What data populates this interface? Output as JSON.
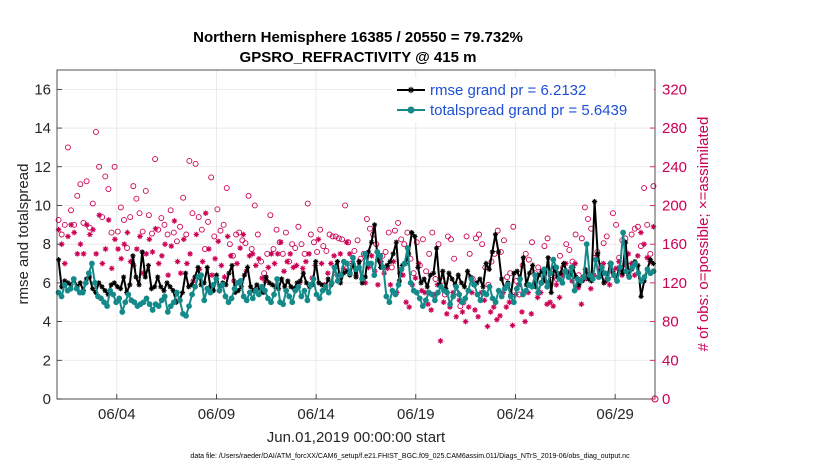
{
  "chart_data": {
    "type": "line",
    "title": "Northern Hemisphere 16385 / 20550 = 79.732%",
    "subtitle": "GPSRO_REFRACTIVITY @ 415 m",
    "xlabel": "Jun.01,2019 00:00:00 start",
    "ylabel": "rmse and totalspread",
    "ylabel_right": "# of obs: o=possible; ×=assimilated",
    "footnote": "data file: /Users/raeder/DAI/ATM_forcXX/CAM6_setup/f.e21.FHIST_BGC.f09_025.CAM6assim.011/Diags_NTrS_2019-06/obs_diag_output.nc",
    "xlim": [
      1.0,
      31.0
    ],
    "ylim": [
      0,
      17
    ],
    "ylim_right": [
      0,
      340
    ],
    "xticks": [
      4,
      9,
      14,
      19,
      24,
      29
    ],
    "xtick_labels": [
      "06/04",
      "06/09",
      "06/14",
      "06/19",
      "06/24",
      "06/29"
    ],
    "yticks": [
      0,
      2,
      4,
      6,
      8,
      10,
      12,
      14,
      16
    ],
    "ytick_labels": [
      "0",
      "2",
      "4",
      "6",
      "8",
      "10",
      "12",
      "14",
      "16"
    ],
    "yticks_right": [
      0,
      40,
      80,
      120,
      160,
      200,
      240,
      280,
      320
    ],
    "ytick_labels_right": [
      "0",
      "40",
      "80",
      "120",
      "160",
      "200",
      "240",
      "280",
      "320"
    ],
    "grid": true,
    "legend_position": "top-right",
    "colors": {
      "rmse": "#000000",
      "spread": "#148a8a",
      "obs": "#cc0055",
      "legend_text": "#1f4fd8"
    },
    "series": [
      {
        "name": "rmse grand pr = 6.2132",
        "axis": "left",
        "style": "line-star",
        "values": [
          7.2,
          5.8,
          6.1,
          6.0,
          5.9,
          6.2,
          5.8,
          6.0,
          5.6,
          6.2,
          6.3,
          5.7,
          5.5,
          6.0,
          5.8,
          5.6,
          5.4,
          5.9,
          6.0,
          5.8,
          5.7,
          6.3,
          5.5,
          5.9,
          7.4,
          6.3,
          5.9,
          7.6,
          6.3,
          6.9,
          5.7,
          5.8,
          6.3,
          5.8,
          5.6,
          6.0,
          5.8,
          5.6,
          5.0,
          5.1,
          5.5,
          6.5,
          5.8,
          5.9,
          6.3,
          6.8,
          5.9,
          6.0,
          6.8,
          5.8,
          5.6,
          6.4,
          5.6,
          6.0,
          5.9,
          6.5,
          6.9,
          5.5,
          5.6,
          5.8,
          6.4,
          6.8,
          5.8,
          5.6,
          5.9,
          5.7,
          5.5,
          6.3,
          6.0,
          5.9,
          5.8,
          5.7,
          6.2,
          5.8,
          6.1,
          5.8,
          5.7,
          6.0,
          6.1,
          6.5,
          6.0,
          5.8,
          5.9,
          7.1,
          6.0,
          5.9,
          5.7,
          6.2,
          5.9,
          6.8,
          7.1,
          6.0,
          6.5,
          6.6,
          6.4,
          7.0,
          6.3,
          7.1,
          6.0,
          6.3,
          7.6,
          8.1,
          9.0,
          7.2,
          6.8,
          6.8,
          6.9,
          7.1,
          7.5,
          8.1,
          6.1,
          6.9,
          7.0,
          7.5,
          8.6,
          8.4,
          6.8,
          6.0,
          6.2,
          5.8,
          6.4,
          6.5,
          7.8,
          5.9,
          6.6,
          5.7,
          6.5,
          6.2,
          5.9,
          6.4,
          6.0,
          5.8,
          6.6,
          6.3,
          5.9,
          6.0,
          6.2,
          5.8,
          7.0,
          6.7,
          7.6,
          8.5,
          7.6,
          6.2,
          5.7,
          6.0,
          5.4,
          6.5,
          6.6,
          6.2,
          7.3,
          5.9,
          6.5,
          6.9,
          5.8,
          6.4,
          6.6,
          6.1,
          7.3,
          5.5,
          6.8,
          6.3,
          6.5,
          7.0,
          6.6,
          6.4,
          6.8,
          6.3,
          5.9,
          6.1,
          6.7,
          6.2,
          6.1,
          10.2,
          7.5,
          6.6,
          6.0,
          6.2,
          7.0,
          6.5,
          6.2,
          6.8,
          6.5,
          8.1,
          6.4,
          6.7,
          7.1,
          6.9,
          5.3,
          6.1,
          6.7,
          7.2,
          7.0
        ]
      },
      {
        "name": "totalspread grand pr = 5.6439",
        "axis": "left",
        "style": "line-dot",
        "values": [
          5.5,
          5.3,
          5.9,
          5.6,
          5.7,
          6.2,
          5.7,
          5.5,
          5.5,
          6.0,
          6.5,
          7.0,
          6.0,
          5.3,
          5.2,
          5.0,
          4.8,
          5.6,
          5.4,
          5.0,
          5.2,
          4.5,
          5.0,
          5.4,
          5.1,
          5.0,
          4.8,
          4.9,
          5.0,
          5.2,
          4.9,
          4.6,
          4.9,
          4.8,
          5.1,
          5.3,
          4.5,
          4.8,
          5.0,
          5.5,
          5.1,
          4.4,
          4.3,
          4.8,
          5.4,
          5.8,
          6.3,
          6.4,
          5.1,
          5.7,
          5.5,
          5.9,
          6.2,
          5.6,
          5.9,
          5.3,
          5.0,
          5.2,
          5.7,
          6.0,
          6.1,
          5.3,
          5.1,
          5.5,
          5.2,
          5.6,
          5.4,
          5.8,
          5.6,
          5.2,
          5.0,
          5.4,
          6.2,
          5.0,
          4.9,
          5.6,
          5.3,
          5.0,
          5.6,
          5.8,
          5.3,
          5.6,
          5.1,
          5.9,
          6.2,
          5.4,
          5.2,
          5.6,
          5.8,
          5.5,
          6.0,
          6.8,
          6.1,
          6.4,
          7.1,
          7.0,
          6.5,
          7.3,
          6.7,
          6.8,
          6.2,
          7.5,
          7.0,
          7.0,
          6.4,
          7.6,
          7.4,
          6.8,
          5.3,
          5.0,
          5.6,
          5.4,
          5.9,
          6.7,
          7.0,
          7.8,
          6.0,
          5.6,
          5.5,
          5.2,
          4.8,
          5.1,
          5.5,
          5.4,
          5.1,
          5.5,
          5.8,
          5.6,
          5.5,
          4.9,
          5.3,
          5.8,
          5.4,
          5.0,
          5.2,
          5.6,
          6.2,
          5.9,
          5.4,
          5.1,
          5.5,
          5.4,
          5.8,
          5.2,
          5.0,
          5.6,
          5.3,
          5.7,
          5.9,
          5.3,
          5.0,
          5.7,
          6.2,
          5.4,
          5.6,
          5.9,
          5.8,
          6.4,
          5.5,
          6.0,
          6.7,
          5.8,
          6.5,
          7.2,
          6.8,
          6.2,
          6.0,
          6.6,
          6.3,
          6.8,
          5.6,
          6.2,
          6.1,
          6.3,
          8.0,
          6.4,
          6.2,
          7.2,
          6.3,
          6.8,
          6.5,
          6.2,
          7.0,
          6.4,
          6.1,
          6.8,
          8.6,
          6.6,
          6.3,
          6.8,
          7.0,
          6.5,
          6.1,
          6.3,
          6.7,
          6.5,
          6.6
        ]
      },
      {
        "name": "obs possible",
        "axis": "right",
        "style": "circle",
        "values": [
          185,
          170,
          180,
          260,
          195,
          180,
          210,
          222,
          182,
          225,
          177,
          202,
          276,
          240,
          188,
          230,
          217,
          172,
          240,
          173,
          198,
          185,
          156,
          188,
          220,
          207,
          192,
          173,
          215,
          190,
          171,
          248,
          175,
          187,
          180,
          170,
          195,
          172,
          163,
          178,
          208,
          170,
          246,
          192,
          243,
          188,
          175,
          155,
          183,
          229,
          168,
          196,
          174,
          180,
          218,
          160,
          148,
          170,
          172,
          164,
          161,
          210,
          155,
          200,
          170,
          142,
          130,
          150,
          190,
          155,
          175,
          162,
          150,
          172,
          142,
          160,
          156,
          178,
          160,
          150,
          202,
          170,
          162,
          152,
          175,
          158,
          153,
          170,
          168,
          168,
          166,
          165,
          200,
          162,
          140,
          153,
          164,
          145,
          150,
          186,
          176,
          170,
          160,
          148,
          148,
          152,
          172,
          136,
          174,
          182,
          165,
          160,
          172,
          145,
          130,
          162,
          138,
          165,
          132,
          150,
          172,
          124,
          160,
          122,
          108,
          168,
          165,
          145,
          110,
          96,
          100,
          168,
          150,
          124,
          166,
          170,
          160,
          136,
          118,
          142,
          150,
          174,
          152,
          164,
          126,
          130,
          178,
          122,
          108,
          138,
          150,
          144,
          162,
          130,
          136,
          120,
          158,
          166,
          128,
          130,
          124,
          148,
          136,
          160,
          154,
          142,
          170,
          128,
          166,
          198,
          186,
          176,
          146,
          152,
          132,
          161,
          168,
          128,
          192,
          180,
          146,
          164,
          166,
          132,
          170,
          176,
          178,
          158,
          218,
          180,
          150,
          220
        ]
      },
      {
        "name": "obs assimilated",
        "axis": "right",
        "style": "star",
        "values": [
          175,
          160,
          140,
          168,
          180,
          172,
          150,
          160,
          150,
          180,
          170,
          175,
          150,
          190,
          140,
          155,
          185,
          135,
          165,
          155,
          145,
          160,
          172,
          142,
          138,
          155,
          168,
          130,
          150,
          165,
          152,
          176,
          140,
          148,
          160,
          128,
          158,
          184,
          142,
          130,
          165,
          140,
          150,
          122,
          170,
          134,
          142,
          192,
          155,
          128,
          145,
          163,
          138,
          126,
          168,
          148,
          122,
          140,
          156,
          170,
          132,
          148,
          150,
          138,
          145,
          125,
          122,
          136,
          150,
          140,
          150,
          162,
          132,
          142,
          150,
          136,
          138,
          120,
          135,
          142,
          150,
          125,
          138,
          165,
          140,
          118,
          130,
          140,
          148,
          128,
          150,
          135,
          162,
          150,
          140,
          128,
          142,
          125,
          120,
          136,
          148,
          132,
          118,
          142,
          130,
          135,
          118,
          142,
          110,
          130,
          128,
          100,
          95,
          118,
          125,
          140,
          112,
          110,
          98,
          92,
          108,
          118,
          60,
          100,
          88,
          95,
          110,
          85,
          102,
          90,
          80,
          95,
          110,
          92,
          85,
          110,
          102,
          75,
          90,
          95,
          82,
          86,
          110,
          95,
          100,
          76,
          108,
          118,
          90,
          80,
          110,
          88,
          120,
          105,
          110,
          125,
          98,
          100,
          96,
          118,
          105,
          128,
          140,
          130,
          122,
          140,
          115,
          98,
          124,
          130,
          114,
          128,
          148,
          135,
          140,
          122,
          118,
          132,
          135,
          142,
          128,
          138,
          150,
          140,
          128,
          148,
          172,
          160,
          146,
          142,
          178
        ]
      }
    ]
  }
}
